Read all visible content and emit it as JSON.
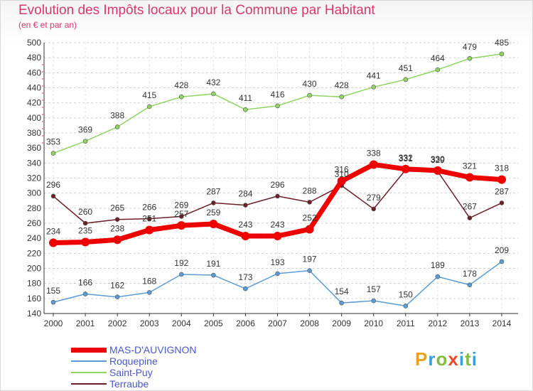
{
  "title": "Evolution des Impôts locaux pour la Commune par Habitant",
  "subtitle": "(en € et par an)",
  "brand": {
    "letters": [
      "P",
      "r",
      "o",
      "x",
      "i",
      "t",
      "i"
    ],
    "colors": [
      "#e8a21b",
      "#3aa0d8",
      "#7fbf3f",
      "#e84a2b",
      "#3aa0d8",
      "#7fbf3f",
      "#3aa0d8"
    ]
  },
  "chart_data": {
    "type": "line",
    "x": [
      2000,
      2001,
      2002,
      2003,
      2004,
      2005,
      2006,
      2007,
      2008,
      2009,
      2010,
      2011,
      2012,
      2013,
      2014
    ],
    "ylim": [
      140,
      500
    ],
    "yticks": [
      140,
      160,
      180,
      200,
      220,
      240,
      260,
      280,
      300,
      320,
      340,
      360,
      380,
      400,
      420,
      440,
      460,
      480,
      500
    ],
    "grid": true,
    "legend_position": "bottom-left",
    "series": [
      {
        "name": "MAS-D'AUVIGNON",
        "color": "#ee0000",
        "values": [
          234,
          235,
          238,
          251,
          257,
          259,
          243,
          243,
          252,
          316,
          338,
          332,
          330,
          321,
          318
        ]
      },
      {
        "name": "Roquepine",
        "color": "#5b9bd5",
        "values": [
          155,
          166,
          162,
          168,
          192,
          191,
          173,
          193,
          197,
          154,
          157,
          150,
          189,
          178,
          209
        ]
      },
      {
        "name": "Saint-Puy",
        "color": "#8fd460",
        "values": [
          353,
          369,
          388,
          415,
          428,
          432,
          411,
          416,
          430,
          428,
          441,
          451,
          464,
          479,
          485
        ]
      },
      {
        "name": "Terraube",
        "color": "#6b1f28",
        "values": [
          296,
          260,
          265,
          266,
          269,
          287,
          284,
          296,
          288,
          310,
          279,
          331,
          329,
          267,
          287
        ]
      }
    ]
  }
}
